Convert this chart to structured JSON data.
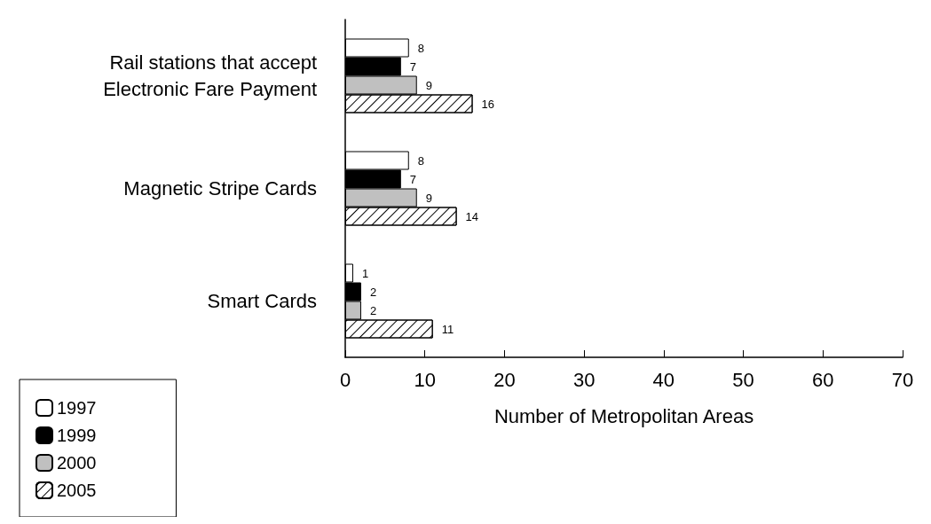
{
  "chart_data": {
    "type": "bar",
    "orientation": "horizontal",
    "xlabel": "Number of Metropolitan Areas",
    "categories": [
      "Rail stations that accept\nElectronic Fare Payment",
      "Magnetic Stripe Cards",
      "Smart Cards"
    ],
    "series": [
      {
        "name": "1997",
        "color": "#ffffff",
        "values": [
          8,
          8,
          1
        ]
      },
      {
        "name": "1999",
        "color": "#000000",
        "values": [
          7,
          7,
          2
        ]
      },
      {
        "name": "2000",
        "color": "#c0c0c0",
        "values": [
          9,
          9,
          2
        ]
      },
      {
        "name": "2005",
        "color": "#ffffff",
        "values": [
          16,
          14,
          11
        ]
      }
    ],
    "xlim": [
      0,
      70
    ],
    "xticks": [
      0,
      10,
      20,
      30,
      40,
      50,
      60,
      70
    ],
    "grid": false,
    "legend": "bottom left",
    "data_labels": true
  }
}
